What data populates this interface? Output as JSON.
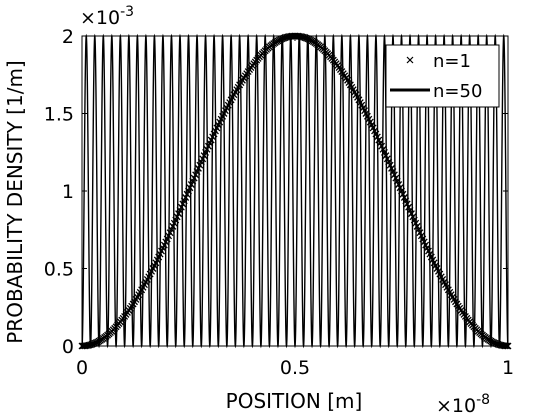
{
  "chart_data": {
    "type": "line",
    "xlabel": "POSITION [m]",
    "ylabel": "PROBABILITY DENSITY [1/m]",
    "x_exponent_label": "×10",
    "x_exponent": "-8",
    "y_exponent_label": "×10",
    "y_exponent": "-3",
    "xlim": [
      0,
      1
    ],
    "ylim": [
      0,
      2
    ],
    "x_ticks": [
      {
        "value": 0,
        "label": "0"
      },
      {
        "value": 0.5,
        "label": "0.5"
      },
      {
        "value": 1,
        "label": "1"
      }
    ],
    "y_ticks": [
      {
        "value": 0,
        "label": "0"
      },
      {
        "value": 0.5,
        "label": "0.5"
      },
      {
        "value": 1,
        "label": "1"
      },
      {
        "value": 1.5,
        "label": "1.5"
      },
      {
        "value": 2,
        "label": "2"
      }
    ],
    "grid": false,
    "legend_position": "top-right",
    "series": [
      {
        "name": "n=1",
        "n": 1,
        "marker": "x",
        "line": "none",
        "peak": 2,
        "color": "#000000"
      },
      {
        "name": "n=50",
        "n": 50,
        "marker": "none",
        "line": "solid",
        "peak": 2,
        "color": "#000000"
      }
    ]
  }
}
